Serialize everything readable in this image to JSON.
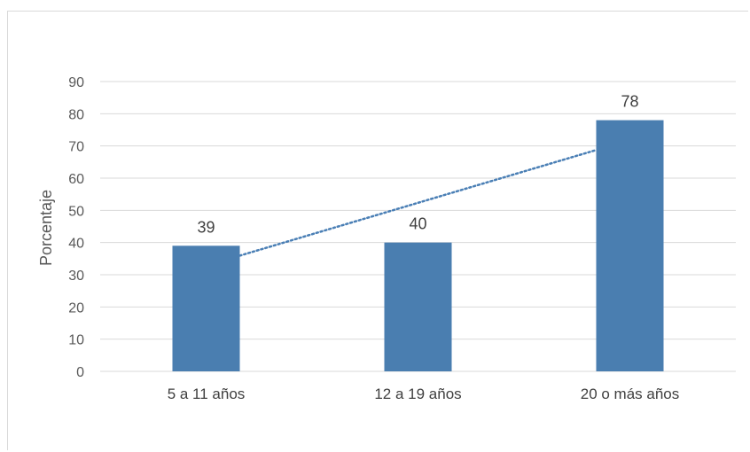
{
  "chart_data": {
    "type": "bar",
    "categories": [
      "5 a 11 años",
      "12 a 19 años",
      "20 o más años"
    ],
    "values": [
      39,
      40,
      78
    ],
    "data_labels": [
      "39",
      "40",
      "78"
    ],
    "ylabel": "Porcentaje",
    "ylim": [
      0,
      90
    ],
    "yticks": [
      0,
      10,
      20,
      30,
      40,
      50,
      60,
      70,
      80,
      90
    ],
    "grid": true,
    "trendline": {
      "type": "linear",
      "style": "dotted",
      "color": "#4a7fb5"
    },
    "colors": {
      "bar": "#4a7eb0",
      "grid": "#d9d9d9",
      "trendline": "#4a7fb5"
    }
  }
}
